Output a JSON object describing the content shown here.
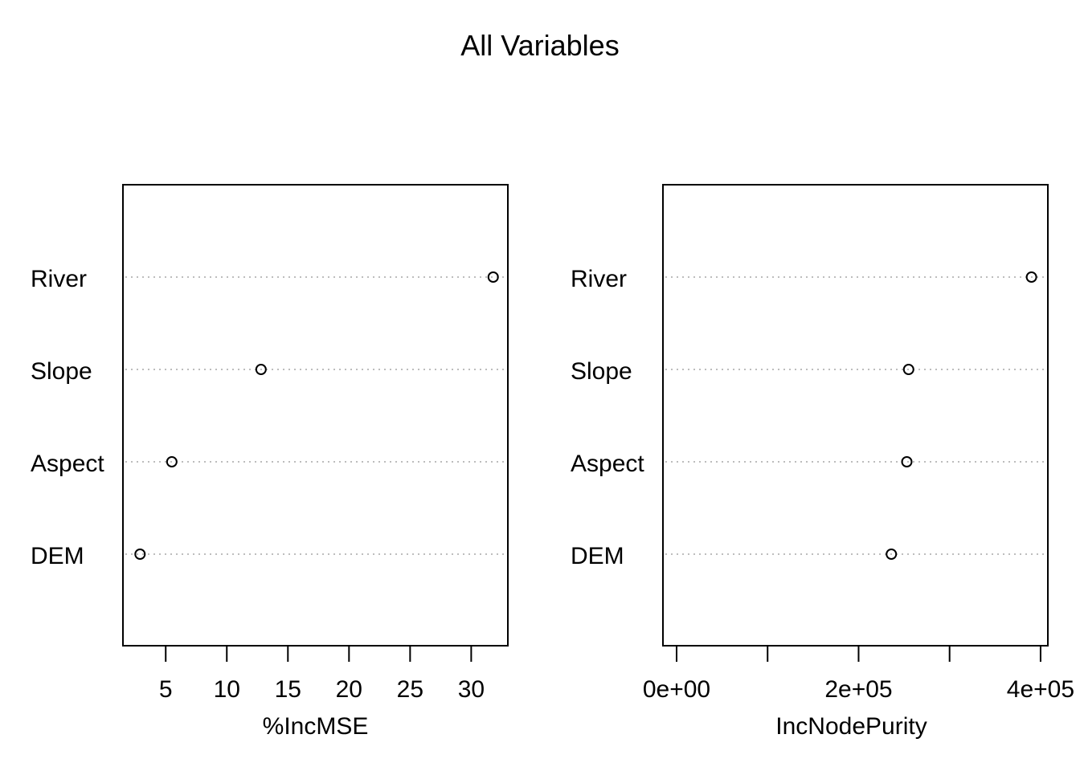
{
  "title": "All Variables",
  "chart_data": [
    {
      "type": "scatter",
      "subtype": "dotchart",
      "xlabel": "%IncMSE",
      "categories": [
        "River",
        "Slope",
        "Aspect",
        "DEM"
      ],
      "values": [
        31.8,
        12.8,
        5.5,
        2.9
      ],
      "xlim": [
        1.5,
        33
      ],
      "xticks": [
        5,
        10,
        15,
        20,
        25,
        30
      ],
      "xtick_labels": [
        "5",
        "10",
        "15",
        "20",
        "25",
        "30"
      ],
      "grid": "dotted horizontal"
    },
    {
      "type": "scatter",
      "subtype": "dotchart",
      "xlabel": "IncNodePurity",
      "categories": [
        "River",
        "Slope",
        "Aspect",
        "DEM"
      ],
      "values": [
        390000,
        255000,
        253000,
        236000
      ],
      "xlim": [
        -15000,
        408000
      ],
      "xticks": [
        0,
        100000,
        200000,
        300000,
        400000
      ],
      "xtick_labels": [
        "0e+00",
        "",
        "2e+05",
        "",
        "4e+05"
      ],
      "grid": "dotted horizontal"
    }
  ]
}
